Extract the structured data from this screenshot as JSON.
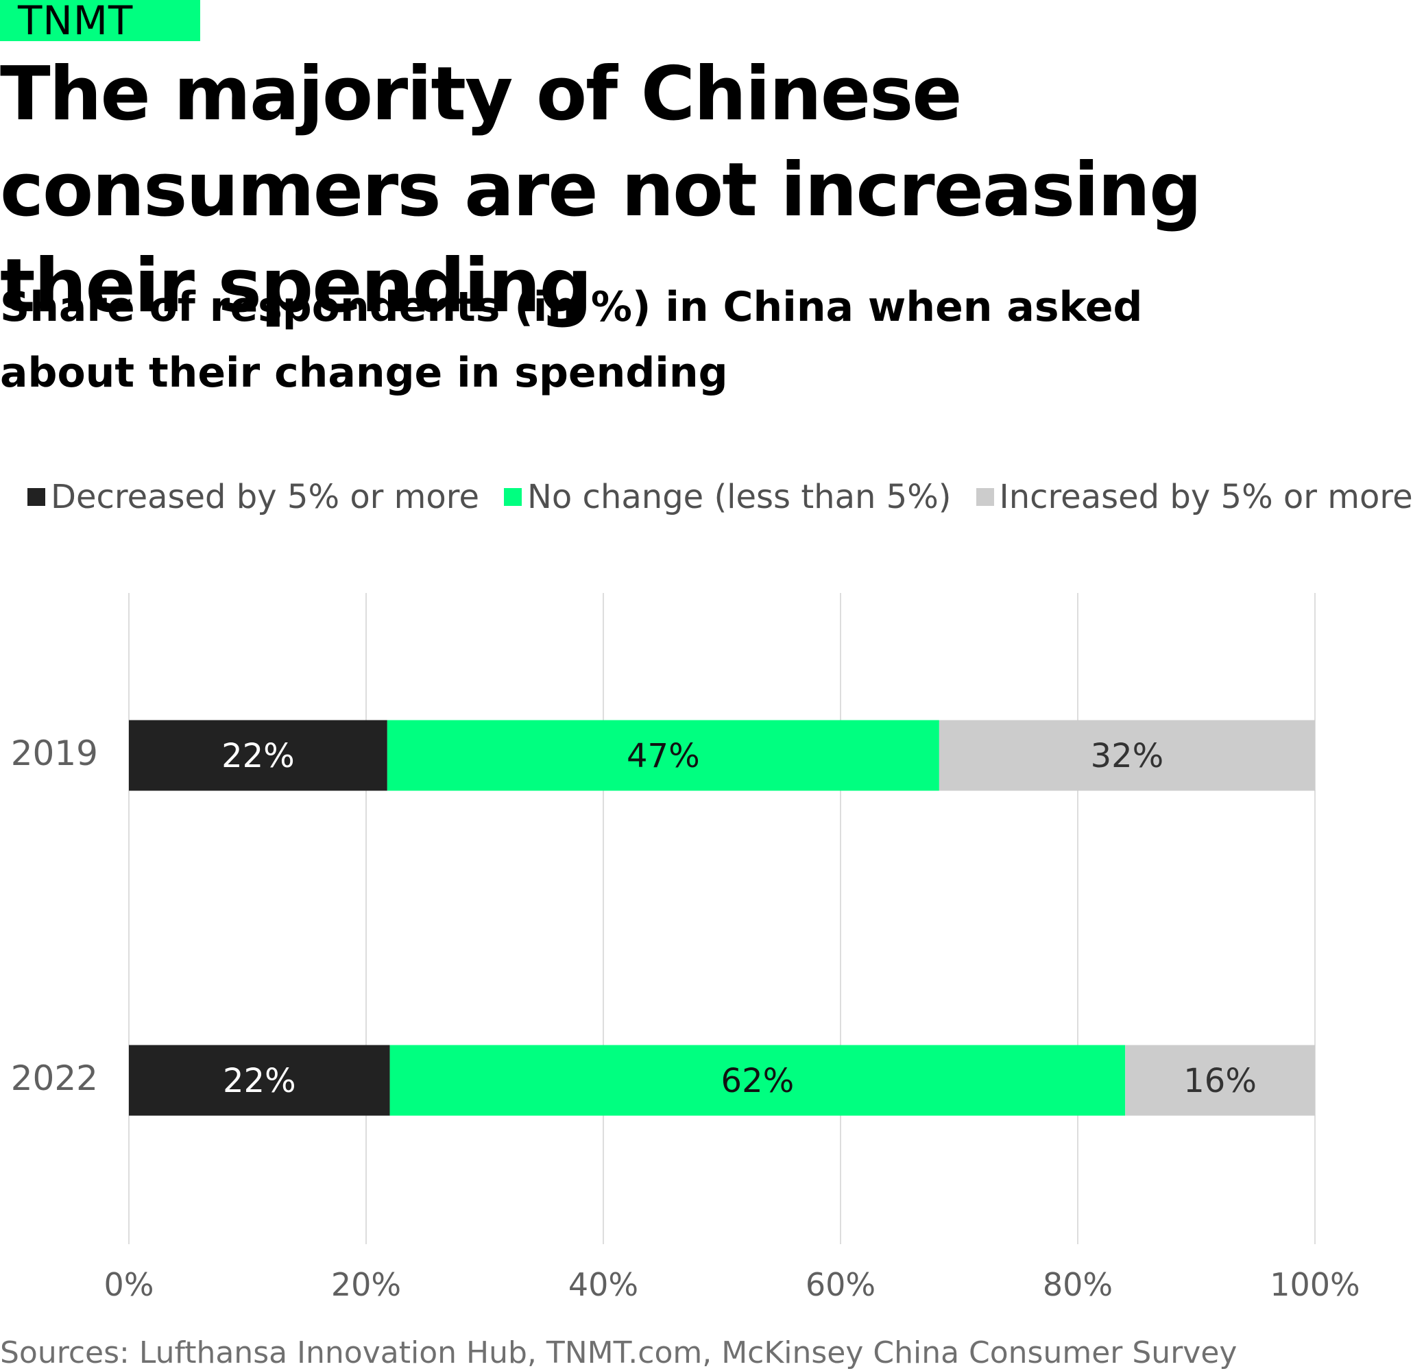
{
  "logo": {
    "text": "TNMT"
  },
  "title": "The majority of Chinese consumers are not increasing their spending",
  "subtitle": "Share of respondents (in %) in China when asked about their change in spending",
  "source": "Sources: Lufthansa Innovation Hub, TNMT.com, McKinsey China Consumer Survey",
  "colors": {
    "brand": "#00ff80",
    "decreased": "#222222",
    "no_change": "#00ff80",
    "increased": "#cccccc"
  },
  "chart_data": {
    "type": "bar",
    "orientation": "horizontal",
    "stacked": true,
    "categories": [
      "2019",
      "2022"
    ],
    "series": [
      {
        "name": "Decreased by 5% or more",
        "values": [
          22,
          22
        ],
        "labels": [
          "22%",
          "22%"
        ],
        "color": "#222222",
        "label_color": "#ffffff"
      },
      {
        "name": "No change (less than 5%)",
        "values": [
          47,
          62
        ],
        "labels": [
          "47%",
          "62%"
        ],
        "color": "#00ff80",
        "label_color": "#111111"
      },
      {
        "name": "Increased by 5% or more",
        "values": [
          32,
          16
        ],
        "labels": [
          "32%",
          "16%"
        ],
        "color": "#cccccc",
        "label_color": "#333333"
      }
    ],
    "xlim": [
      0,
      100
    ],
    "xticks": [
      0,
      20,
      40,
      60,
      80,
      100
    ],
    "xtick_labels": [
      "0%",
      "20%",
      "40%",
      "60%",
      "80%",
      "100%"
    ],
    "grid": true,
    "legend_position": "top"
  }
}
